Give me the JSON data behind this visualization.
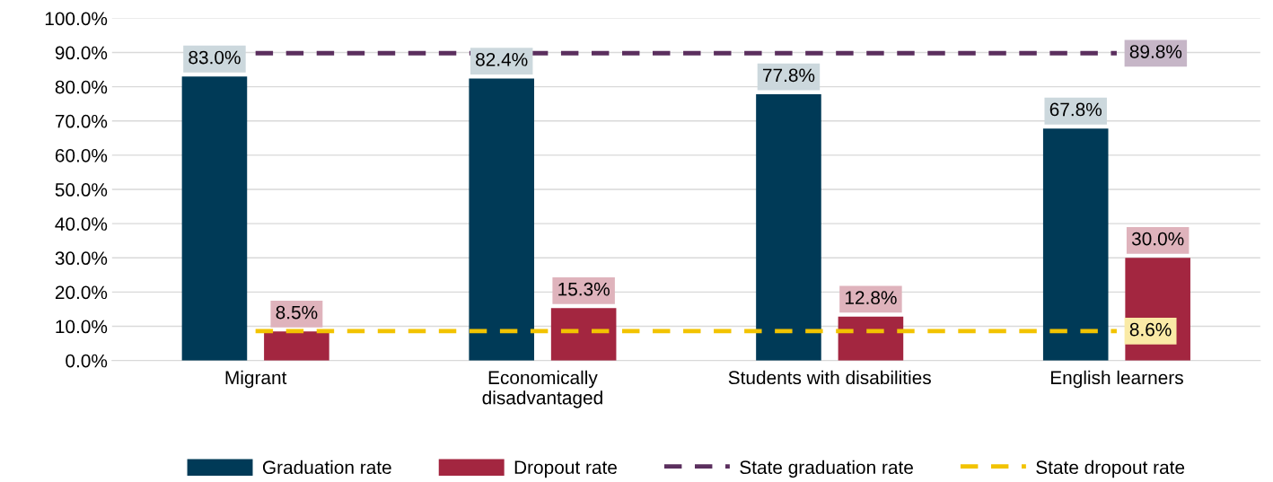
{
  "chart_data": {
    "type": "bar",
    "categories": [
      "Migrant",
      "Economically\ndisadvantaged",
      "Students with disabilities",
      "English learners"
    ],
    "series": [
      {
        "name": "Graduation rate",
        "color": "#003a57",
        "values": [
          83.0,
          82.4,
          77.8,
          67.8
        ],
        "value_labels": [
          "83.0%",
          "82.4%",
          "77.8%",
          "67.8%"
        ]
      },
      {
        "name": "Dropout rate",
        "color": "#a32640",
        "values": [
          8.5,
          15.3,
          12.8,
          30.0
        ],
        "value_labels": [
          "8.5%",
          "15.3%",
          "12.8%",
          "30.0%"
        ]
      },
      {
        "name": "State graduation rate",
        "type": "line",
        "color": "#5b2f5e",
        "line_style": "dashed",
        "values": [
          89.8,
          89.8,
          89.8,
          89.8
        ],
        "value_labels": [
          null,
          null,
          null,
          "89.8%"
        ]
      },
      {
        "name": "State dropout rate",
        "type": "line",
        "color": "#f2c300",
        "line_style": "dashed",
        "values": [
          8.6,
          8.6,
          8.6,
          8.6
        ],
        "value_labels": [
          null,
          null,
          null,
          "8.6%"
        ]
      }
    ],
    "ylim": [
      0,
      100
    ],
    "yticks": [
      {
        "value": 0,
        "label": "0.0%"
      },
      {
        "value": 10,
        "label": "10.0%"
      },
      {
        "value": 20,
        "label": "20.0%"
      },
      {
        "value": 30,
        "label": "30.0%"
      },
      {
        "value": 40,
        "label": "40.0%"
      },
      {
        "value": 50,
        "label": "50.0%"
      },
      {
        "value": 60,
        "label": "60.0%"
      },
      {
        "value": 70,
        "label": "70.0%"
      },
      {
        "value": 80,
        "label": "80.0%"
      },
      {
        "value": 90,
        "label": "90.0%"
      },
      {
        "value": 100,
        "label": "100.0%"
      }
    ],
    "grid": "y",
    "legend": "bottom"
  }
}
